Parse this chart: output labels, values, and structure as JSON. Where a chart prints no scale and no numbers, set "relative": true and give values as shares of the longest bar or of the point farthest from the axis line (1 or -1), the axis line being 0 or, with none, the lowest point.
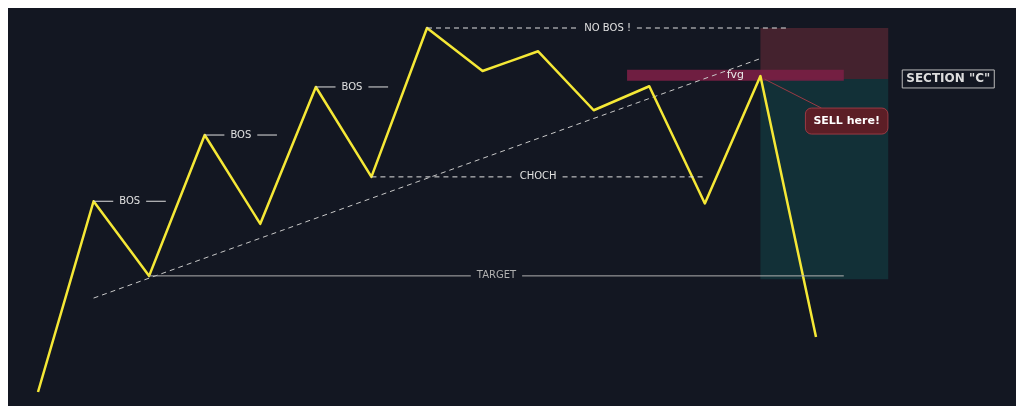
{
  "chart_data": {
    "type": "line",
    "relative": true,
    "categories": [
      null,
      null,
      null,
      null,
      null,
      null,
      null,
      null,
      null,
      null,
      null,
      null,
      null,
      null,
      null
    ],
    "series": [
      {
        "color": "#f5e836",
        "values": [
          0,
          0.524,
          0.319,
          0.706,
          0.462,
          0.838,
          0.591,
          1,
          0.882,
          0.936,
          0.774,
          0.84,
          0.518,
          0.868,
          0.151
        ]
      },
      {
        "type": "line",
        "color": "#c8c8c8",
        "line_style": "dashed",
        "values": [
          null,
          0.258,
          null,
          null,
          null,
          null,
          null,
          null,
          null,
          null,
          null,
          null,
          null,
          0.916,
          null
        ]
      }
    ],
    "ref_lines": [
      {
        "axis": "y",
        "value": 0.524,
        "label": "BOS",
        "color": "#e0e0e0",
        "line_style": "solid"
      },
      {
        "axis": "y",
        "value": 0.706,
        "label": "BOS",
        "color": "#e0e0e0",
        "line_style": "solid"
      },
      {
        "axis": "y",
        "value": 0.838,
        "label": "BOS",
        "color": "#e0e0e0",
        "line_style": "solid"
      },
      {
        "axis": "y",
        "value": 1,
        "label": "NO BOS !",
        "color": "#e0e0e0",
        "line_style": "dashed"
      },
      {
        "axis": "y",
        "value": 0.591,
        "label": "CHOCH",
        "color": "#e0e0e0",
        "line_style": "dashed"
      },
      {
        "axis": "y",
        "value": 0.319,
        "label": "TARGET",
        "color": "#b0b0b0",
        "line_style": "solid"
      }
    ],
    "bands": [
      {
        "axis": "y",
        "from": 0.86,
        "to": 1,
        "color": "#4a2430"
      },
      {
        "axis": "y",
        "from": 0.31,
        "to": 0.86,
        "color": "#13333a"
      },
      {
        "axis": "y",
        "from": 0.855,
        "to": 0.885,
        "label": "fvg",
        "color": "#7a1f45"
      }
    ],
    "annotations": [
      "SELL here!",
      "SECTION \"C\""
    ]
  }
}
